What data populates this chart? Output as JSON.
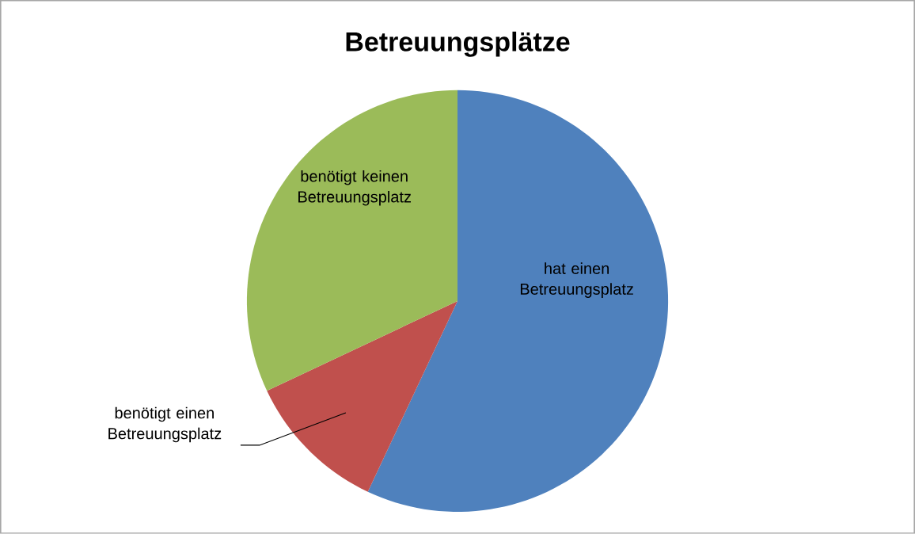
{
  "chart_data": {
    "type": "pie",
    "title": "Betreuungsplätze",
    "categories": [
      "hat einen Betreuungsplatz",
      "benötigt einen Betreuungsplatz",
      "benötigt keinen Betreuungsplatz"
    ],
    "values": [
      57,
      11,
      32
    ],
    "colors": [
      "#4f81bd",
      "#c0504d",
      "#9bbb59"
    ]
  }
}
